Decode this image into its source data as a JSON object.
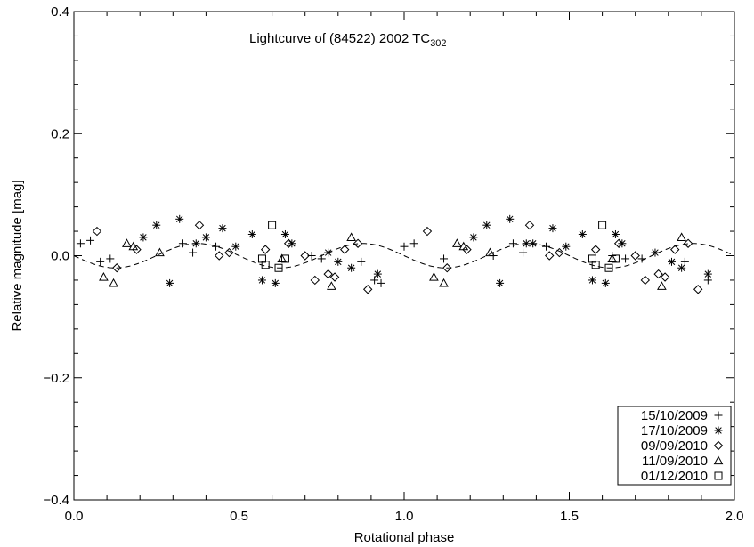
{
  "chart_data": {
    "type": "scatter",
    "title": {
      "main": "Lightcurve of (84522) 2002 TC",
      "subscript": "302"
    },
    "xlabel": "Rotational phase",
    "ylabel": "Relative magnitude [mag]",
    "xlim": [
      0.0,
      2.0
    ],
    "ylim": [
      -0.4,
      0.4
    ],
    "xticks": [
      {
        "value": 0.0,
        "label": "0.0"
      },
      {
        "value": 0.5,
        "label": "0.5"
      },
      {
        "value": 1.0,
        "label": "1.0"
      },
      {
        "value": 1.5,
        "label": "1.5"
      },
      {
        "value": 2.0,
        "label": "2.0"
      }
    ],
    "yticks": [
      {
        "value": -0.4,
        "label": "−0.4"
      },
      {
        "value": -0.2,
        "label": "−0.2"
      },
      {
        "value": 0.0,
        "label": "0.0"
      },
      {
        "value": 0.2,
        "label": "0.2"
      },
      {
        "value": 0.4,
        "label": "0.4"
      }
    ],
    "legend_position": "bottom-right",
    "fit": {
      "style": "dashed",
      "amplitude": 0.02,
      "cycles_per_unit_phase": 2,
      "peak_phase": 0.375
    },
    "series": [
      {
        "name": "15/10/2009",
        "marker": "plus",
        "points": [
          [
            0.02,
            0.02
          ],
          [
            0.05,
            0.025
          ],
          [
            0.08,
            -0.01
          ],
          [
            0.11,
            -0.005
          ],
          [
            0.33,
            0.02
          ],
          [
            0.36,
            0.005
          ],
          [
            0.43,
            0.015
          ],
          [
            0.72,
            0.0
          ],
          [
            0.75,
            -0.005
          ],
          [
            0.87,
            -0.01
          ],
          [
            0.91,
            -0.04
          ],
          [
            0.93,
            -0.045
          ],
          [
            1.0,
            0.015
          ],
          [
            1.03,
            0.02
          ],
          [
            1.12,
            -0.005
          ],
          [
            1.27,
            0.0
          ],
          [
            1.33,
            0.02
          ],
          [
            1.36,
            0.005
          ],
          [
            1.43,
            0.015
          ],
          [
            1.63,
            0.0
          ],
          [
            1.67,
            -0.005
          ],
          [
            1.72,
            -0.005
          ],
          [
            1.85,
            -0.01
          ],
          [
            1.92,
            -0.04
          ]
        ]
      },
      {
        "name": "17/10/2009",
        "marker": "star",
        "points": [
          [
            0.21,
            0.03
          ],
          [
            0.25,
            0.05
          ],
          [
            0.29,
            -0.045
          ],
          [
            0.32,
            0.06
          ],
          [
            0.37,
            0.02
          ],
          [
            0.4,
            0.03
          ],
          [
            0.45,
            0.045
          ],
          [
            0.49,
            0.015
          ],
          [
            0.54,
            0.035
          ],
          [
            0.57,
            -0.04
          ],
          [
            0.61,
            -0.045
          ],
          [
            0.64,
            0.035
          ],
          [
            0.66,
            0.02
          ],
          [
            0.77,
            0.005
          ],
          [
            0.8,
            -0.01
          ],
          [
            0.84,
            -0.02
          ],
          [
            0.92,
            -0.03
          ],
          [
            1.21,
            0.03
          ],
          [
            1.25,
            0.05
          ],
          [
            1.29,
            -0.045
          ],
          [
            1.32,
            0.06
          ],
          [
            1.37,
            0.02
          ],
          [
            1.39,
            0.02
          ],
          [
            1.45,
            0.045
          ],
          [
            1.49,
            0.015
          ],
          [
            1.54,
            0.035
          ],
          [
            1.57,
            -0.04
          ],
          [
            1.61,
            -0.045
          ],
          [
            1.64,
            0.035
          ],
          [
            1.66,
            0.02
          ],
          [
            1.76,
            0.005
          ],
          [
            1.81,
            -0.01
          ],
          [
            1.84,
            -0.02
          ],
          [
            1.92,
            -0.03
          ]
        ]
      },
      {
        "name": "09/09/2010",
        "marker": "diamond",
        "points": [
          [
            0.07,
            0.04
          ],
          [
            0.13,
            -0.02
          ],
          [
            0.19,
            0.01
          ],
          [
            0.38,
            0.05
          ],
          [
            0.44,
            0.0
          ],
          [
            0.47,
            0.005
          ],
          [
            0.58,
            0.01
          ],
          [
            0.65,
            0.02
          ],
          [
            0.7,
            0.0
          ],
          [
            0.73,
            -0.04
          ],
          [
            0.77,
            -0.03
          ],
          [
            0.79,
            -0.035
          ],
          [
            0.82,
            0.01
          ],
          [
            0.86,
            0.02
          ],
          [
            0.89,
            -0.055
          ],
          [
            1.07,
            0.04
          ],
          [
            1.13,
            -0.02
          ],
          [
            1.19,
            0.01
          ],
          [
            1.38,
            0.05
          ],
          [
            1.44,
            0.0
          ],
          [
            1.47,
            0.005
          ],
          [
            1.58,
            0.01
          ],
          [
            1.65,
            0.02
          ],
          [
            1.7,
            0.0
          ],
          [
            1.73,
            -0.04
          ],
          [
            1.77,
            -0.03
          ],
          [
            1.79,
            -0.035
          ],
          [
            1.82,
            0.01
          ],
          [
            1.86,
            0.02
          ],
          [
            1.89,
            -0.055
          ]
        ]
      },
      {
        "name": "11/09/2010",
        "marker": "triangle",
        "points": [
          [
            0.09,
            -0.035
          ],
          [
            0.12,
            -0.045
          ],
          [
            0.16,
            0.02
          ],
          [
            0.18,
            0.015
          ],
          [
            0.26,
            0.005
          ],
          [
            0.63,
            -0.005
          ],
          [
            0.78,
            -0.05
          ],
          [
            0.84,
            0.03
          ],
          [
            1.09,
            -0.035
          ],
          [
            1.12,
            -0.045
          ],
          [
            1.16,
            0.02
          ],
          [
            1.18,
            0.015
          ],
          [
            1.26,
            0.005
          ],
          [
            1.63,
            -0.005
          ],
          [
            1.78,
            -0.05
          ],
          [
            1.84,
            0.03
          ]
        ]
      },
      {
        "name": "01/12/2010",
        "marker": "square",
        "points": [
          [
            0.57,
            -0.005
          ],
          [
            0.6,
            0.05
          ],
          [
            0.62,
            -0.02
          ],
          [
            0.58,
            -0.015
          ],
          [
            0.64,
            -0.005
          ],
          [
            1.57,
            -0.005
          ],
          [
            1.6,
            0.05
          ],
          [
            1.62,
            -0.02
          ],
          [
            1.58,
            -0.015
          ],
          [
            1.64,
            -0.005
          ]
        ]
      }
    ]
  }
}
